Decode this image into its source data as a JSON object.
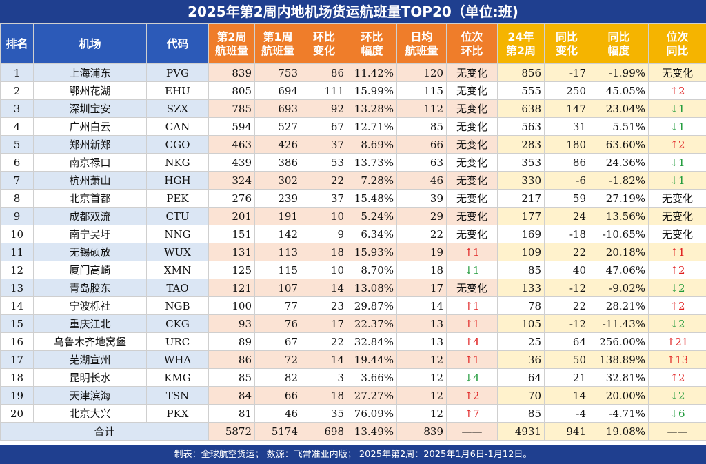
{
  "title": "2025年第2周内地机场货运航班量TOP20（单位:班)",
  "headers": {
    "rank": "排名",
    "airport": "机场",
    "code": "代码",
    "w2_l1": "第2周",
    "w2_l2": "航班量",
    "w1_l1": "第1周",
    "w1_l2": "航班量",
    "wow_chg_l1": "环比",
    "wow_chg_l2": "变化",
    "wow_pct_l1": "环比",
    "wow_pct_l2": "幅度",
    "daily_l1": "日均",
    "daily_l2": "航班量",
    "wow_rank_l1": "位次",
    "wow_rank_l2": "环比",
    "ly_w2_l1": "24年",
    "ly_w2_l2": "第2周",
    "yoy_chg_l1": "同比",
    "yoy_chg_l2": "变化",
    "yoy_pct_l1": "同比",
    "yoy_pct_l2": "幅度",
    "yoy_rank_l1": "位次",
    "yoy_rank_l2": "同比"
  },
  "rows": [
    {
      "rank": "1",
      "airport": "上海浦东",
      "code": "PVG",
      "w2": "839",
      "w1": "753",
      "wow": "86",
      "wow_pct": "11.42%",
      "daily": "120",
      "rank_wow": "无变化",
      "ly": "856",
      "yoy": "-17",
      "yoy_pct": "-1.99%",
      "rank_yoy": "无变化"
    },
    {
      "rank": "2",
      "airport": "鄂州花湖",
      "code": "EHU",
      "w2": "805",
      "w1": "694",
      "wow": "111",
      "wow_pct": "15.99%",
      "daily": "115",
      "rank_wow": "无变化",
      "ly": "555",
      "yoy": "250",
      "yoy_pct": "45.05%",
      "rank_yoy": "↑2"
    },
    {
      "rank": "3",
      "airport": "深圳宝安",
      "code": "SZX",
      "w2": "785",
      "w1": "693",
      "wow": "92",
      "wow_pct": "13.28%",
      "daily": "112",
      "rank_wow": "无变化",
      "ly": "638",
      "yoy": "147",
      "yoy_pct": "23.04%",
      "rank_yoy": "↓1"
    },
    {
      "rank": "4",
      "airport": "广州白云",
      "code": "CAN",
      "w2": "594",
      "w1": "527",
      "wow": "67",
      "wow_pct": "12.71%",
      "daily": "85",
      "rank_wow": "无变化",
      "ly": "563",
      "yoy": "31",
      "yoy_pct": "5.51%",
      "rank_yoy": "↓1"
    },
    {
      "rank": "5",
      "airport": "郑州新郑",
      "code": "CGO",
      "w2": "463",
      "w1": "426",
      "wow": "37",
      "wow_pct": "8.69%",
      "daily": "66",
      "rank_wow": "无变化",
      "ly": "283",
      "yoy": "180",
      "yoy_pct": "63.60%",
      "rank_yoy": "↑2"
    },
    {
      "rank": "6",
      "airport": "南京禄口",
      "code": "NKG",
      "w2": "439",
      "w1": "386",
      "wow": "53",
      "wow_pct": "13.73%",
      "daily": "63",
      "rank_wow": "无变化",
      "ly": "353",
      "yoy": "86",
      "yoy_pct": "24.36%",
      "rank_yoy": "↓1"
    },
    {
      "rank": "7",
      "airport": "杭州萧山",
      "code": "HGH",
      "w2": "324",
      "w1": "302",
      "wow": "22",
      "wow_pct": "7.28%",
      "daily": "46",
      "rank_wow": "无变化",
      "ly": "330",
      "yoy": "-6",
      "yoy_pct": "-1.82%",
      "rank_yoy": "↓1"
    },
    {
      "rank": "8",
      "airport": "北京首都",
      "code": "PEK",
      "w2": "276",
      "w1": "239",
      "wow": "37",
      "wow_pct": "15.48%",
      "daily": "39",
      "rank_wow": "无变化",
      "ly": "217",
      "yoy": "59",
      "yoy_pct": "27.19%",
      "rank_yoy": "无变化"
    },
    {
      "rank": "9",
      "airport": "成都双流",
      "code": "CTU",
      "w2": "201",
      "w1": "191",
      "wow": "10",
      "wow_pct": "5.24%",
      "daily": "29",
      "rank_wow": "无变化",
      "ly": "177",
      "yoy": "24",
      "yoy_pct": "13.56%",
      "rank_yoy": "无变化"
    },
    {
      "rank": "10",
      "airport": "南宁吴圩",
      "code": "NNG",
      "w2": "151",
      "w1": "142",
      "wow": "9",
      "wow_pct": "6.34%",
      "daily": "22",
      "rank_wow": "无变化",
      "ly": "169",
      "yoy": "-18",
      "yoy_pct": "-10.65%",
      "rank_yoy": "无变化"
    },
    {
      "rank": "11",
      "airport": "无锡硕放",
      "code": "WUX",
      "w2": "131",
      "w1": "113",
      "wow": "18",
      "wow_pct": "15.93%",
      "daily": "19",
      "rank_wow": "↑1",
      "ly": "109",
      "yoy": "22",
      "yoy_pct": "20.18%",
      "rank_yoy": "↑1"
    },
    {
      "rank": "12",
      "airport": "厦门高崎",
      "code": "XMN",
      "w2": "125",
      "w1": "115",
      "wow": "10",
      "wow_pct": "8.70%",
      "daily": "18",
      "rank_wow": "↓1",
      "ly": "85",
      "yoy": "40",
      "yoy_pct": "47.06%",
      "rank_yoy": "↑2"
    },
    {
      "rank": "13",
      "airport": "青岛胶东",
      "code": "TAO",
      "w2": "121",
      "w1": "107",
      "wow": "14",
      "wow_pct": "13.08%",
      "daily": "17",
      "rank_wow": "无变化",
      "ly": "133",
      "yoy": "-12",
      "yoy_pct": "-9.02%",
      "rank_yoy": "↓2"
    },
    {
      "rank": "14",
      "airport": "宁波栎社",
      "code": "NGB",
      "w2": "100",
      "w1": "77",
      "wow": "23",
      "wow_pct": "29.87%",
      "daily": "14",
      "rank_wow": "↑1",
      "ly": "78",
      "yoy": "22",
      "yoy_pct": "28.21%",
      "rank_yoy": "↑2"
    },
    {
      "rank": "15",
      "airport": "重庆江北",
      "code": "CKG",
      "w2": "93",
      "w1": "76",
      "wow": "17",
      "wow_pct": "22.37%",
      "daily": "13",
      "rank_wow": "↑1",
      "ly": "105",
      "yoy": "-12",
      "yoy_pct": "-11.43%",
      "rank_yoy": "↓2"
    },
    {
      "rank": "16",
      "airport": "乌鲁木齐地窝堡",
      "code": "URC",
      "w2": "89",
      "w1": "67",
      "wow": "22",
      "wow_pct": "32.84%",
      "daily": "13",
      "rank_wow": "↑4",
      "ly": "25",
      "yoy": "64",
      "yoy_pct": "256.00%",
      "rank_yoy": "↑21"
    },
    {
      "rank": "17",
      "airport": "芜湖宣州",
      "code": "WHA",
      "w2": "86",
      "w1": "72",
      "wow": "14",
      "wow_pct": "19.44%",
      "daily": "12",
      "rank_wow": "↑1",
      "ly": "36",
      "yoy": "50",
      "yoy_pct": "138.89%",
      "rank_yoy": "↑13"
    },
    {
      "rank": "18",
      "airport": "昆明长水",
      "code": "KMG",
      "w2": "85",
      "w1": "82",
      "wow": "3",
      "wow_pct": "3.66%",
      "daily": "12",
      "rank_wow": "↓4",
      "ly": "64",
      "yoy": "21",
      "yoy_pct": "32.81%",
      "rank_yoy": "↑2"
    },
    {
      "rank": "19",
      "airport": "天津滨海",
      "code": "TSN",
      "w2": "84",
      "w1": "66",
      "wow": "18",
      "wow_pct": "27.27%",
      "daily": "12",
      "rank_wow": "↑2",
      "ly": "70",
      "yoy": "14",
      "yoy_pct": "20.00%",
      "rank_yoy": "↓2"
    },
    {
      "rank": "20",
      "airport": "北京大兴",
      "code": "PKX",
      "w2": "81",
      "w1": "46",
      "wow": "35",
      "wow_pct": "76.09%",
      "daily": "12",
      "rank_wow": "↑7",
      "ly": "85",
      "yoy": "-4",
      "yoy_pct": "-4.71%",
      "rank_yoy": "↓6"
    }
  ],
  "total": {
    "label": "合计",
    "w2": "5872",
    "w1": "5174",
    "wow": "698",
    "wow_pct": "13.49%",
    "daily": "839",
    "rank_wow": "——",
    "ly": "4931",
    "yoy": "941",
    "yoy_pct": "19.08%",
    "rank_yoy": "——"
  },
  "footer": "制表：全球航空货运；  数源：飞常准业内版；  2025年第2周：2025年1月6日-1月12日。",
  "colors": {
    "header_blue": "#2c5ab8",
    "header_orange": "#ef7d2a",
    "header_gold": "#f5b400",
    "title_bg": "#1f3f8f",
    "up": "#e02020",
    "down": "#1f9a3a"
  }
}
